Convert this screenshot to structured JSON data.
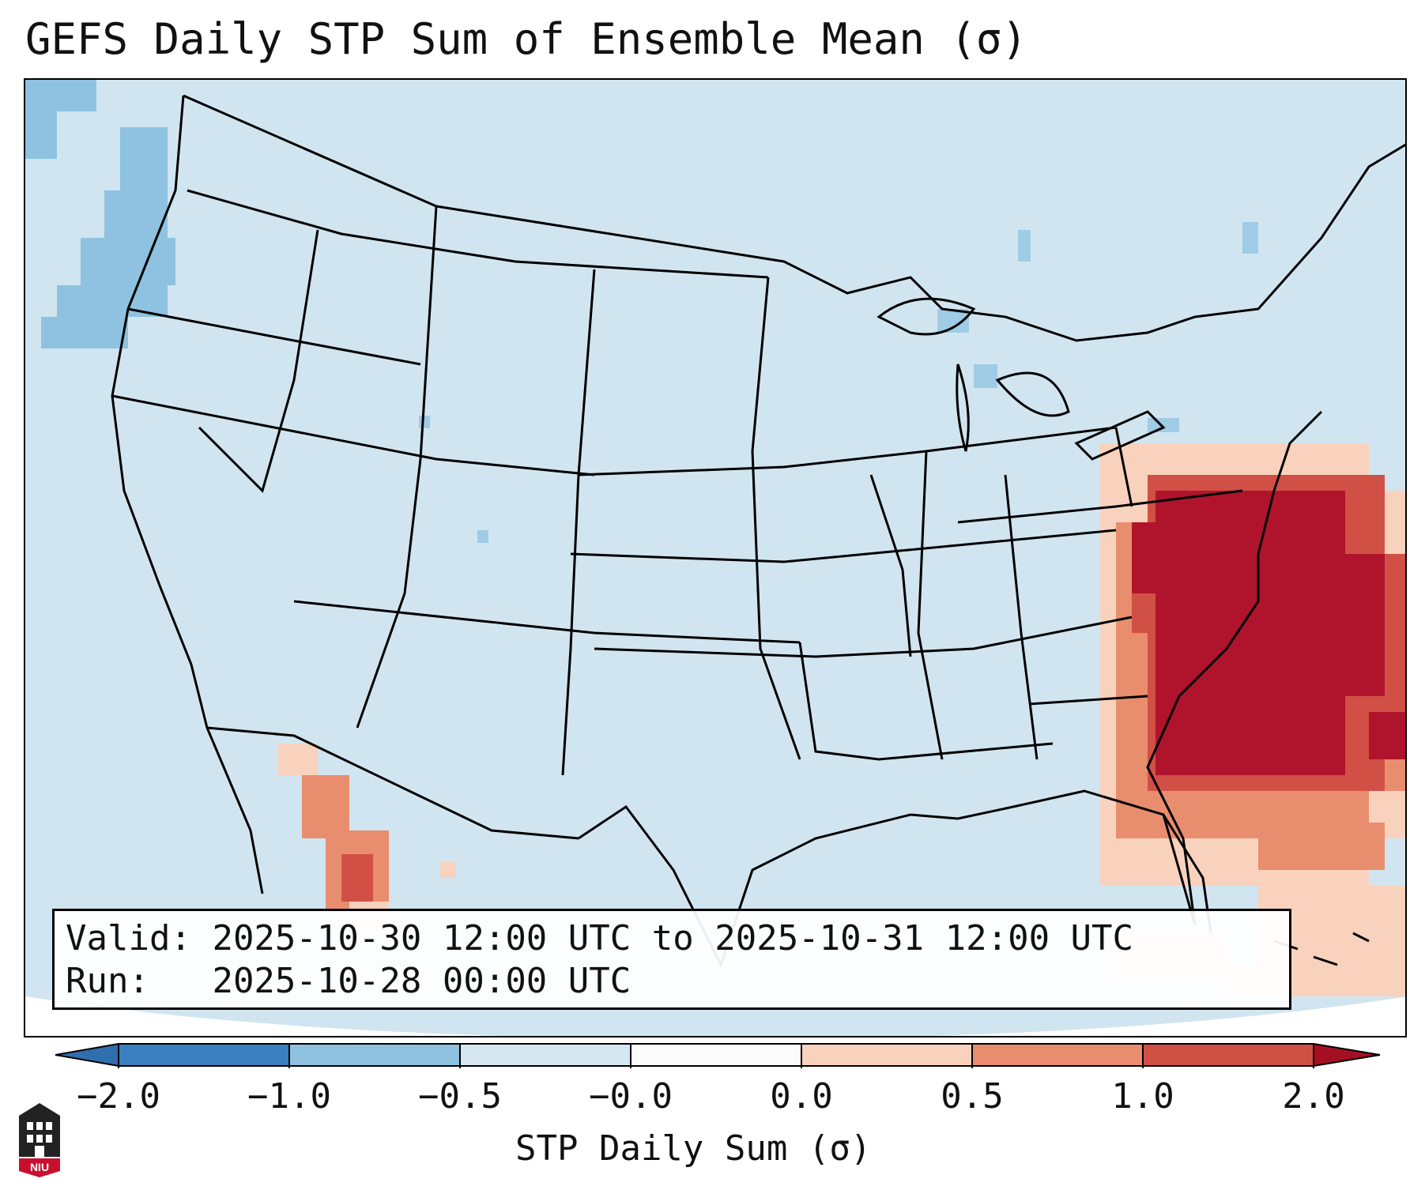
{
  "title": "GEFS Daily STP Sum of Ensemble Mean (σ)",
  "info": {
    "valid_label": "Valid:",
    "valid_value": "2025-10-30 12:00 UTC to 2025-10-31 12:00 UTC",
    "run_label": "Run:",
    "run_value": "2025-10-28 00:00 UTC"
  },
  "colorbar": {
    "label": "STP Daily Sum (σ)",
    "ticks": [
      "−2.0",
      "−1.0",
      "−0.5",
      "−0.0",
      "0.0",
      "0.5",
      "1.0",
      "2.0"
    ],
    "colors": [
      "#3a7fbf",
      "#8ec2e0",
      "#d6e7f1",
      "#f9d2bd",
      "#e88e6e",
      "#d15045",
      "#b0142d"
    ],
    "extend_low_color": "#2f6fae",
    "extend_high_color": "#a50f24"
  },
  "map": {
    "background_color": "#d1e5f0",
    "region": "Continental United States",
    "highlight": "Mid-Atlantic and western Atlantic maximum"
  },
  "logo": {
    "text": "NIU"
  }
}
